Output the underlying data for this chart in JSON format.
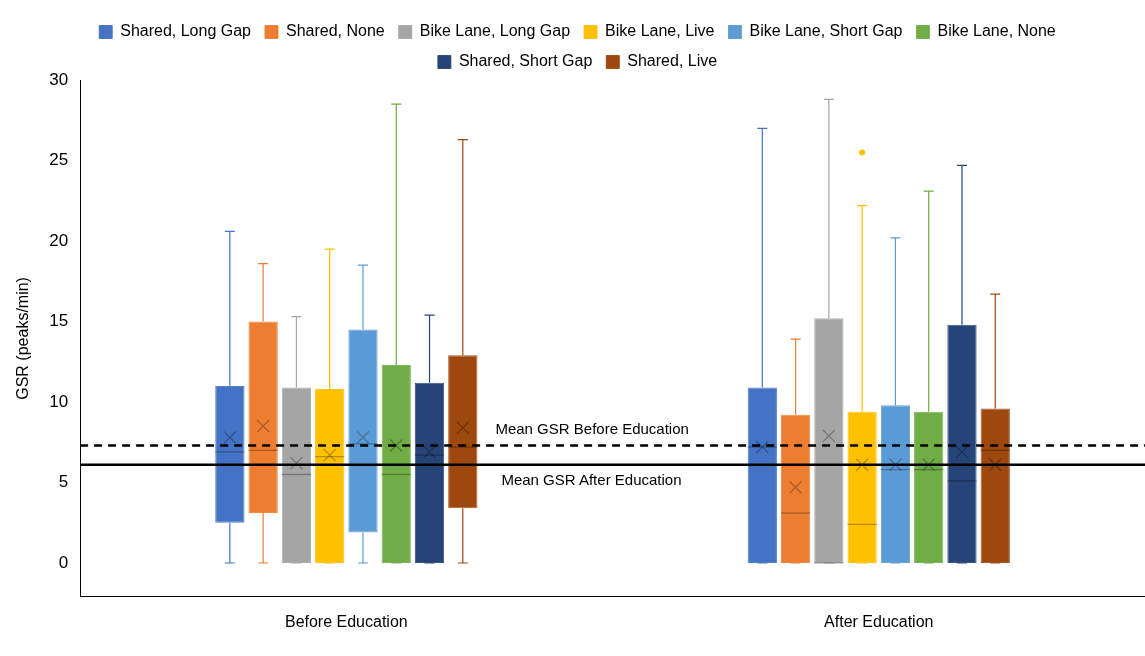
{
  "chart_data": {
    "type": "box",
    "ylabel": "GSR (peaks/min)",
    "categories": [
      "Before Education",
      "After Education"
    ],
    "ylim": [
      -2.1,
      30
    ],
    "yticks": [
      0,
      5,
      10,
      15,
      20,
      25,
      30
    ],
    "grid": false,
    "legend": "top",
    "series": [
      {
        "name": "Shared, Long Gap",
        "color": "#4472c4",
        "boxes": [
          {
            "low": 0,
            "q1": 2.5,
            "median": 6.9,
            "q3": 11.0,
            "high": 20.6,
            "mean": 7.8
          },
          {
            "low": 0,
            "q1": 0,
            "median": 7.2,
            "q3": 10.9,
            "high": 27.0,
            "mean": 7.2
          }
        ]
      },
      {
        "name": "Shared, None",
        "color": "#ed7d31",
        "boxes": [
          {
            "low": 0,
            "q1": 3.1,
            "median": 7.0,
            "q3": 15.0,
            "high": 18.6,
            "mean": 8.5
          },
          {
            "low": 0,
            "q1": 0,
            "median": 3.1,
            "q3": 9.2,
            "high": 13.9,
            "mean": 4.7
          }
        ]
      },
      {
        "name": "Bike Lane, Long Gap",
        "color": "#a5a5a5",
        "boxes": [
          {
            "low": 0,
            "q1": 0,
            "median": 5.5,
            "q3": 10.9,
            "high": 15.3,
            "mean": 6.2
          },
          {
            "low": 0,
            "q1": 0,
            "median": 0,
            "q3": 15.2,
            "high": 28.8,
            "mean": 7.9
          }
        ]
      },
      {
        "name": "Bike Lane, Live",
        "color": "#ffc000",
        "boxes": [
          {
            "low": 0,
            "q1": 0,
            "median": 6.6,
            "q3": 10.8,
            "high": 19.5,
            "mean": 6.7
          },
          {
            "low": 0,
            "q1": 0,
            "median": 2.4,
            "q3": 9.4,
            "high": 22.2,
            "mean": 6.1,
            "outliers": [
              25.5
            ]
          }
        ]
      },
      {
        "name": "Bike Lane, Short Gap",
        "color": "#5b9bd5",
        "boxes": [
          {
            "low": 0,
            "q1": 1.9,
            "median": 7.4,
            "q3": 14.5,
            "high": 18.5,
            "mean": 7.8
          },
          {
            "low": 0,
            "q1": 0,
            "median": 5.8,
            "q3": 9.8,
            "high": 20.2,
            "mean": 6.1
          }
        ]
      },
      {
        "name": "Bike Lane, None",
        "color": "#70ad47",
        "boxes": [
          {
            "low": 0,
            "q1": 0,
            "median": 5.5,
            "q3": 12.3,
            "high": 28.5,
            "mean": 7.3
          },
          {
            "low": 0,
            "q1": 0,
            "median": 5.8,
            "q3": 9.4,
            "high": 23.1,
            "mean": 6.1
          }
        ]
      },
      {
        "name": "Shared, Short Gap",
        "color": "#264478",
        "boxes": [
          {
            "low": 0,
            "q1": 0,
            "median": 6.7,
            "q3": 11.2,
            "high": 15.4,
            "mean": 6.9
          },
          {
            "low": 0,
            "q1": 0,
            "median": 5.1,
            "q3": 14.8,
            "high": 24.7,
            "mean": 6.9
          }
        ]
      },
      {
        "name": "Shared, Live",
        "color": "#9e480e",
        "boxes": [
          {
            "low": 0,
            "q1": 3.4,
            "median": 7.2,
            "q3": 12.9,
            "high": 26.3,
            "mean": 8.4
          },
          {
            "low": 0,
            "q1": 0,
            "median": 7.0,
            "q3": 9.6,
            "high": 16.7,
            "mean": 6.1
          }
        ]
      }
    ],
    "ref_lines": [
      {
        "axis": "y",
        "value": 7.3,
        "label": "Mean GSR Before Education",
        "color": "#000000",
        "line_style": "dashed"
      },
      {
        "axis": "y",
        "value": 6.1,
        "label": "Mean GSR After Education",
        "color": "#000000",
        "line_style": "solid"
      }
    ]
  }
}
